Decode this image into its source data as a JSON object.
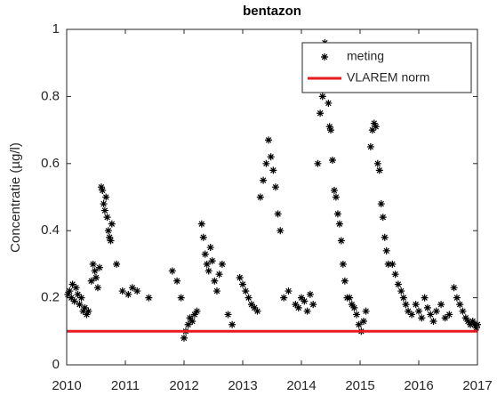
{
  "chart_data": {
    "type": "scatter",
    "title": "bentazon",
    "ylabel": "Concentratie (µg/l)",
    "xlim": [
      2010,
      2017
    ],
    "xticks": [
      2010,
      2011,
      2012,
      2013,
      2014,
      2015,
      2016,
      2017
    ],
    "ylim": [
      0,
      1
    ],
    "yticks": [
      0,
      0.2,
      0.4,
      0.6,
      0.8,
      1
    ],
    "legend": "upper right",
    "series": [
      {
        "name": "meting",
        "color": "#000000",
        "mode": "markers",
        "x": [
          2010.02,
          2010.05,
          2010.08,
          2010.1,
          2010.13,
          2010.16,
          2010.19,
          2010.22,
          2010.25,
          2010.28,
          2010.31,
          2010.34,
          2010.37,
          2010.42,
          2010.45,
          2010.48,
          2010.5,
          2010.53,
          2010.56,
          2010.59,
          2010.61,
          2010.63,
          2010.65,
          2010.67,
          2010.69,
          2010.71,
          2010.73,
          2010.75,
          2010.77,
          2010.85,
          2010.95,
          2011.05,
          2011.12,
          2011.2,
          2011.4,
          2011.8,
          2011.88,
          2011.95,
          2012.0,
          2012.03,
          2012.07,
          2012.1,
          2012.14,
          2012.18,
          2012.22,
          2012.3,
          2012.33,
          2012.36,
          2012.39,
          2012.42,
          2012.45,
          2012.48,
          2012.52,
          2012.56,
          2012.6,
          2012.65,
          2012.75,
          2012.82,
          2012.95,
          2013.0,
          2013.05,
          2013.1,
          2013.15,
          2013.2,
          2013.25,
          2013.3,
          2013.35,
          2013.4,
          2013.44,
          2013.48,
          2013.52,
          2013.56,
          2013.6,
          2013.64,
          2013.7,
          2013.78,
          2013.9,
          2013.95,
          2014.0,
          2014.05,
          2014.1,
          2014.15,
          2014.2,
          2014.28,
          2014.32,
          2014.36,
          2014.4,
          2014.43,
          2014.46,
          2014.48,
          2014.5,
          2014.53,
          2014.56,
          2014.59,
          2014.62,
          2014.65,
          2014.68,
          2014.71,
          2014.74,
          2014.78,
          2014.82,
          2014.86,
          2014.9,
          2014.94,
          2014.98,
          2015.02,
          2015.06,
          2015.1,
          2015.18,
          2015.21,
          2015.24,
          2015.27,
          2015.3,
          2015.33,
          2015.36,
          2015.39,
          2015.42,
          2015.45,
          2015.48,
          2015.55,
          2015.6,
          2015.65,
          2015.7,
          2015.74,
          2015.78,
          2015.82,
          2015.88,
          2015.95,
          2016.0,
          2016.05,
          2016.1,
          2016.15,
          2016.2,
          2016.25,
          2016.3,
          2016.38,
          2016.45,
          2016.52,
          2016.6,
          2016.65,
          2016.7,
          2016.75,
          2016.8,
          2016.84,
          2016.88,
          2016.92,
          2016.95,
          2016.98,
          2017.0
        ],
        "values": [
          0.21,
          0.22,
          0.2,
          0.24,
          0.19,
          0.23,
          0.21,
          0.18,
          0.2,
          0.16,
          0.17,
          0.15,
          0.16,
          0.25,
          0.3,
          0.28,
          0.26,
          0.23,
          0.29,
          0.53,
          0.52,
          0.48,
          0.46,
          0.5,
          0.44,
          0.4,
          0.38,
          0.37,
          0.42,
          0.3,
          0.22,
          0.21,
          0.23,
          0.22,
          0.2,
          0.28,
          0.25,
          0.2,
          0.08,
          0.1,
          0.12,
          0.14,
          0.13,
          0.15,
          0.16,
          0.42,
          0.38,
          0.33,
          0.3,
          0.28,
          0.35,
          0.31,
          0.25,
          0.22,
          0.27,
          0.3,
          0.15,
          0.12,
          0.26,
          0.24,
          0.22,
          0.2,
          0.18,
          0.17,
          0.16,
          0.5,
          0.55,
          0.6,
          0.67,
          0.62,
          0.58,
          0.53,
          0.45,
          0.4,
          0.2,
          0.22,
          0.18,
          0.17,
          0.2,
          0.19,
          0.16,
          0.21,
          0.18,
          0.6,
          0.75,
          0.8,
          0.96,
          0.9,
          0.78,
          0.71,
          0.7,
          0.61,
          0.52,
          0.5,
          0.45,
          0.42,
          0.37,
          0.3,
          0.25,
          0.2,
          0.2,
          0.18,
          0.17,
          0.15,
          0.12,
          0.1,
          0.13,
          0.16,
          0.65,
          0.7,
          0.72,
          0.71,
          0.6,
          0.58,
          0.48,
          0.44,
          0.38,
          0.34,
          0.3,
          0.3,
          0.27,
          0.24,
          0.22,
          0.2,
          0.18,
          0.16,
          0.15,
          0.18,
          0.16,
          0.14,
          0.2,
          0.17,
          0.15,
          0.13,
          0.16,
          0.18,
          0.14,
          0.15,
          0.23,
          0.2,
          0.18,
          0.16,
          0.14,
          0.13,
          0.12,
          0.13,
          0.12,
          0.11,
          0.12
        ]
      },
      {
        "name": "VLAREM norm",
        "color": "#e8191f",
        "mode": "line",
        "x": [
          2010,
          2017
        ],
        "values": [
          0.1,
          0.1
        ]
      }
    ]
  }
}
